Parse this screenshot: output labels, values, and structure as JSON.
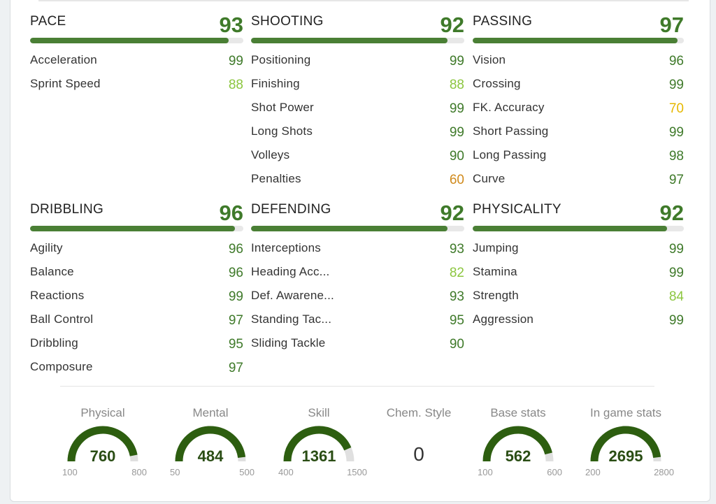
{
  "colors": {
    "high": "#3f7a2a",
    "mid": "#8cc63f",
    "warn": "#e6b800",
    "low": "#d08a1c",
    "bar": "#4a7f35",
    "gauge": "#2d5e10",
    "gauge_track": "#e0e0e0"
  },
  "categories": [
    {
      "name": "PACE",
      "value": "93",
      "fill": 0.93,
      "stats": [
        {
          "label": "Acceleration",
          "value": "99",
          "level": "high"
        },
        {
          "label": "Sprint Speed",
          "value": "88",
          "level": "mid"
        }
      ]
    },
    {
      "name": "SHOOTING",
      "value": "92",
      "fill": 0.92,
      "stats": [
        {
          "label": "Positioning",
          "value": "99",
          "level": "high"
        },
        {
          "label": "Finishing",
          "value": "88",
          "level": "mid"
        },
        {
          "label": "Shot Power",
          "value": "99",
          "level": "high"
        },
        {
          "label": "Long Shots",
          "value": "99",
          "level": "high"
        },
        {
          "label": "Volleys",
          "value": "90",
          "level": "high"
        },
        {
          "label": "Penalties",
          "value": "60",
          "level": "low"
        }
      ]
    },
    {
      "name": "PASSING",
      "value": "97",
      "fill": 0.97,
      "stats": [
        {
          "label": "Vision",
          "value": "96",
          "level": "high"
        },
        {
          "label": "Crossing",
          "value": "99",
          "level": "high"
        },
        {
          "label": "FK. Accuracy",
          "value": "70",
          "level": "warn"
        },
        {
          "label": "Short Passing",
          "value": "99",
          "level": "high"
        },
        {
          "label": "Long Passing",
          "value": "98",
          "level": "high"
        },
        {
          "label": "Curve",
          "value": "97",
          "level": "high"
        }
      ]
    },
    {
      "name": "DRIBBLING",
      "value": "96",
      "fill": 0.96,
      "stats": [
        {
          "label": "Agility",
          "value": "96",
          "level": "high"
        },
        {
          "label": "Balance",
          "value": "96",
          "level": "high"
        },
        {
          "label": "Reactions",
          "value": "99",
          "level": "high"
        },
        {
          "label": "Ball Control",
          "value": "97",
          "level": "high"
        },
        {
          "label": "Dribbling",
          "value": "95",
          "level": "high"
        },
        {
          "label": "Composure",
          "value": "97",
          "level": "high"
        }
      ]
    },
    {
      "name": "DEFENDING",
      "value": "92",
      "fill": 0.92,
      "stats": [
        {
          "label": "Interceptions",
          "value": "93",
          "level": "high"
        },
        {
          "label": "Heading Acc...",
          "value": "82",
          "level": "mid"
        },
        {
          "label": "Def. Awarene...",
          "value": "93",
          "level": "high"
        },
        {
          "label": "Standing Tac...",
          "value": "95",
          "level": "high"
        },
        {
          "label": "Sliding Tackle",
          "value": "90",
          "level": "high"
        }
      ]
    },
    {
      "name": "PHYSICALITY",
      "value": "92",
      "fill": 0.92,
      "stats": [
        {
          "label": "Jumping",
          "value": "99",
          "level": "high"
        },
        {
          "label": "Stamina",
          "value": "99",
          "level": "high"
        },
        {
          "label": "Strength",
          "value": "84",
          "level": "mid"
        },
        {
          "label": "Aggression",
          "value": "99",
          "level": "high"
        }
      ]
    }
  ],
  "gauges": [
    {
      "title": "Physical",
      "value": "760",
      "min": "100",
      "max": "800",
      "fill": 0.94
    },
    {
      "title": "Mental",
      "value": "484",
      "min": "50",
      "max": "500",
      "fill": 0.96
    },
    {
      "title": "Skill",
      "value": "1361",
      "min": "400",
      "max": "1500",
      "fill": 0.87
    },
    {
      "title": "Chem. Style",
      "value": "0"
    },
    {
      "title": "Base stats",
      "value": "562",
      "min": "100",
      "max": "600",
      "fill": 0.92
    },
    {
      "title": "In game stats",
      "value": "2695",
      "min": "200",
      "max": "2800",
      "fill": 0.96
    }
  ]
}
